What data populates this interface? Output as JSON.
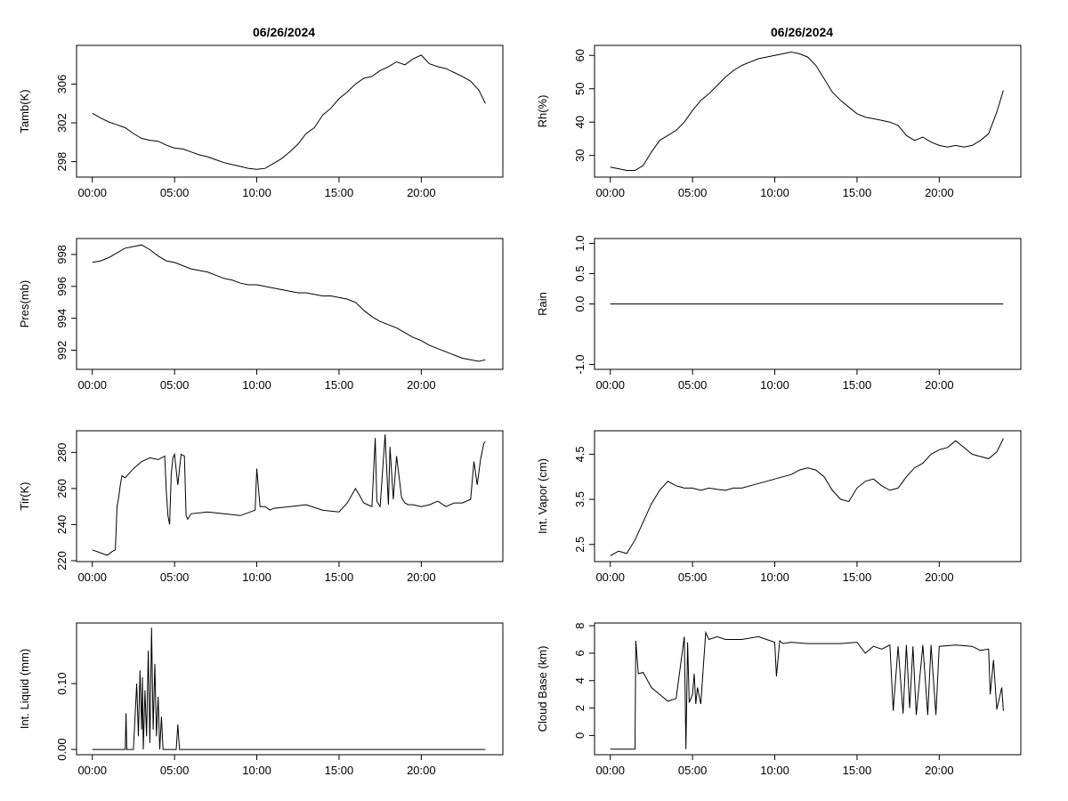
{
  "page": {
    "titles": [
      "06/26/2024",
      "06/26/2024"
    ]
  },
  "chart_data": [
    {
      "id": "tamb",
      "type": "line",
      "ylabel": "Tamb(K)",
      "xticks": [
        "00:00",
        "05:00",
        "10:00",
        "15:00",
        "20:00"
      ],
      "yticks": [
        298,
        302,
        306
      ],
      "ylim": [
        296.4,
        310.0
      ],
      "xlim": [
        -0.96,
        24.96
      ],
      "x": [
        0,
        0.5,
        1,
        1.5,
        2,
        2.5,
        3,
        3.5,
        4,
        4.5,
        5,
        5.5,
        6,
        6.5,
        7,
        7.5,
        8,
        8.5,
        9,
        9.5,
        10,
        10.5,
        11,
        11.5,
        12,
        12.5,
        13,
        13.5,
        14,
        14.5,
        15,
        15.5,
        16,
        16.5,
        17,
        17.5,
        18,
        18.5,
        19,
        19.5,
        20,
        20.5,
        21,
        21.5,
        22,
        22.5,
        23,
        23.5,
        23.9
      ],
      "y": [
        303.0,
        302.5,
        302.1,
        301.8,
        301.5,
        300.9,
        300.4,
        300.2,
        300.1,
        299.7,
        299.4,
        299.3,
        299.0,
        298.7,
        298.5,
        298.2,
        297.9,
        297.7,
        297.5,
        297.3,
        297.2,
        297.3,
        297.8,
        298.3,
        299.0,
        299.8,
        300.9,
        301.5,
        302.8,
        303.5,
        304.5,
        305.2,
        306.0,
        306.6,
        306.8,
        307.4,
        307.8,
        308.3,
        308.0,
        308.6,
        309.0,
        308.1,
        307.8,
        307.6,
        307.2,
        306.8,
        306.3,
        305.4,
        304.0
      ]
    },
    {
      "id": "rh",
      "type": "line",
      "ylabel": "Rh(%)",
      "xticks": [
        "00:00",
        "05:00",
        "10:00",
        "15:00",
        "20:00"
      ],
      "yticks": [
        30,
        40,
        50,
        60
      ],
      "ylim": [
        23.5,
        63.0
      ],
      "xlim": [
        -0.96,
        24.96
      ],
      "x": [
        0,
        0.5,
        1,
        1.5,
        2,
        2.5,
        3,
        3.5,
        4,
        4.5,
        5,
        5.5,
        6,
        6.5,
        7,
        7.5,
        8,
        8.5,
        9,
        9.5,
        10,
        10.5,
        11,
        11.5,
        12,
        12.5,
        13,
        13.5,
        14,
        14.5,
        15,
        15.5,
        16,
        16.5,
        17,
        17.5,
        18,
        18.5,
        19,
        19.5,
        20,
        20.5,
        21,
        21.5,
        22,
        22.5,
        23,
        23.5,
        23.9
      ],
      "y": [
        26.5,
        26.0,
        25.5,
        25.5,
        27.0,
        31.0,
        34.5,
        36.0,
        37.5,
        40.0,
        43.5,
        46.5,
        48.5,
        51.0,
        53.5,
        55.5,
        57.0,
        58.0,
        59.0,
        59.5,
        60.0,
        60.5,
        61.0,
        60.5,
        59.5,
        57.0,
        53.0,
        49.0,
        46.5,
        44.5,
        42.5,
        41.5,
        41.0,
        40.5,
        40.0,
        39.0,
        36.0,
        34.5,
        35.5,
        34.0,
        33.0,
        32.5,
        33.0,
        32.5,
        33.0,
        34.5,
        36.5,
        43.0,
        49.5
      ]
    },
    {
      "id": "pres",
      "type": "line",
      "ylabel": "Pres(mb)",
      "xticks": [
        "00:00",
        "05:00",
        "10:00",
        "15:00",
        "20:00"
      ],
      "yticks": [
        992,
        994,
        996,
        998
      ],
      "ylim": [
        990.8,
        999.0
      ],
      "xlim": [
        -0.96,
        24.96
      ],
      "x": [
        0,
        0.5,
        1,
        1.5,
        2,
        2.5,
        3,
        3.5,
        4,
        4.5,
        5,
        5.5,
        6,
        6.5,
        7,
        7.5,
        8,
        8.5,
        9,
        9.5,
        10,
        10.5,
        11,
        11.5,
        12,
        12.5,
        13,
        13.5,
        14,
        14.5,
        15,
        15.5,
        16,
        16.5,
        17,
        17.5,
        18,
        18.5,
        19,
        19.5,
        20,
        20.5,
        21,
        21.5,
        22,
        22.5,
        23,
        23.5,
        23.9
      ],
      "y": [
        997.5,
        997.6,
        997.8,
        998.1,
        998.4,
        998.5,
        998.6,
        998.3,
        997.9,
        997.6,
        997.5,
        997.3,
        997.1,
        997.0,
        996.9,
        996.7,
        996.5,
        996.4,
        996.2,
        996.1,
        996.1,
        996.0,
        995.9,
        995.8,
        995.7,
        995.6,
        995.6,
        995.5,
        995.4,
        995.4,
        995.3,
        995.2,
        995.0,
        994.5,
        994.1,
        993.8,
        993.6,
        993.4,
        993.1,
        992.8,
        992.6,
        992.3,
        992.1,
        991.9,
        991.7,
        991.5,
        991.4,
        991.3,
        991.4
      ]
    },
    {
      "id": "rain",
      "type": "line",
      "ylabel": "Rain",
      "xticks": [
        "00:00",
        "05:00",
        "10:00",
        "15:00",
        "20:00"
      ],
      "yticks": [
        "-1.0",
        "0.0",
        "0.5",
        "1.0"
      ],
      "ylim": [
        -1.08,
        1.08
      ],
      "xlim": [
        -0.96,
        24.96
      ],
      "x": [
        0,
        23.9
      ],
      "y": [
        0,
        0
      ]
    },
    {
      "id": "tir",
      "type": "line",
      "ylabel": "Tir(K)",
      "xticks": [
        "00:00",
        "05:00",
        "10:00",
        "15:00",
        "20:00"
      ],
      "yticks": [
        220,
        240,
        260,
        280
      ],
      "ylim": [
        219.5,
        292.0
      ],
      "xlim": [
        -0.96,
        24.96
      ],
      "x": [
        0,
        0.6,
        0.9,
        1.2,
        1.4,
        1.5,
        1.6,
        1.7,
        1.8,
        2.0,
        2.5,
        3.0,
        3.5,
        4.0,
        4.4,
        4.5,
        4.6,
        4.7,
        4.8,
        4.9,
        5.0,
        5.2,
        5.4,
        5.6,
        5.7,
        5.8,
        6.0,
        7.0,
        8.0,
        9.0,
        9.9,
        10.0,
        10.2,
        10.5,
        10.8,
        11.0,
        12.0,
        13.0,
        14.0,
        15.0,
        15.5,
        16.0,
        16.2,
        16.5,
        17.0,
        17.2,
        17.3,
        17.5,
        17.8,
        18.0,
        18.1,
        18.3,
        18.5,
        18.8,
        19.0,
        19.2,
        19.5,
        20.0,
        20.5,
        21.0,
        21.5,
        22.0,
        22.5,
        23.0,
        23.2,
        23.4,
        23.6,
        23.8,
        23.9
      ],
      "y": [
        226,
        224,
        223,
        225,
        226,
        250,
        255,
        262,
        267,
        266,
        271,
        275,
        277,
        276,
        278,
        258,
        245,
        240,
        268,
        277,
        279,
        262,
        279,
        278,
        245,
        243,
        246,
        247,
        246,
        245,
        248,
        271,
        250,
        250,
        248,
        249,
        250,
        251,
        248,
        247,
        252,
        260,
        257,
        252,
        250,
        288,
        253,
        250,
        290,
        251,
        283,
        254,
        278,
        255,
        252,
        251,
        251,
        250,
        251,
        253,
        250,
        252,
        252,
        254,
        275,
        262,
        276,
        285,
        286
      ]
    },
    {
      "id": "vapor",
      "type": "line",
      "ylabel": "Int. Vapor (cm)",
      "xticks": [
        "00:00",
        "05:00",
        "10:00",
        "15:00",
        "20:00"
      ],
      "yticks": [
        "2.5",
        "3.5",
        "4.5"
      ],
      "ylim": [
        2.12,
        5.02
      ],
      "xlim": [
        -0.96,
        24.96
      ],
      "x": [
        0,
        0.5,
        1,
        1.5,
        2,
        2.5,
        3,
        3.5,
        4,
        4.5,
        5,
        5.5,
        6,
        6.5,
        7,
        7.5,
        8,
        8.5,
        9,
        9.5,
        10,
        10.5,
        11,
        11.5,
        12,
        12.5,
        13,
        13.5,
        14,
        14.5,
        15,
        15.5,
        16,
        16.5,
        17,
        17.5,
        18,
        18.5,
        19,
        19.5,
        20,
        20.5,
        21,
        21.5,
        22,
        22.5,
        23,
        23.5,
        23.9
      ],
      "y": [
        2.25,
        2.35,
        2.3,
        2.6,
        3.0,
        3.4,
        3.7,
        3.9,
        3.8,
        3.75,
        3.75,
        3.7,
        3.75,
        3.72,
        3.7,
        3.75,
        3.75,
        3.8,
        3.85,
        3.9,
        3.95,
        4.0,
        4.05,
        4.15,
        4.2,
        4.15,
        4.0,
        3.7,
        3.5,
        3.45,
        3.75,
        3.9,
        3.95,
        3.8,
        3.7,
        3.75,
        4.0,
        4.2,
        4.3,
        4.5,
        4.6,
        4.65,
        4.8,
        4.65,
        4.5,
        4.45,
        4.4,
        4.55,
        4.85
      ]
    },
    {
      "id": "liquid",
      "type": "line",
      "ylabel": "Int. Liquid (mm)",
      "xticks": [
        "00:00",
        "05:00",
        "10:00",
        "15:00",
        "20:00"
      ],
      "yticks": [
        "0.00",
        "0.10"
      ],
      "ylim": [
        -0.008,
        0.192
      ],
      "xlim": [
        -0.96,
        24.96
      ],
      "x": [
        0,
        2.0,
        2.05,
        2.1,
        2.5,
        2.7,
        2.8,
        2.9,
        3.0,
        3.05,
        3.1,
        3.2,
        3.3,
        3.4,
        3.5,
        3.6,
        3.7,
        3.8,
        3.9,
        4.0,
        4.1,
        4.2,
        4.3,
        4.4,
        5.1,
        5.2,
        5.3,
        23.9
      ],
      "y": [
        0,
        0,
        0.055,
        0,
        0,
        0.1,
        0.02,
        0.12,
        0.03,
        0.11,
        0,
        0.09,
        0.02,
        0.15,
        0.01,
        0.185,
        0.03,
        0.13,
        0.02,
        0.08,
        0,
        0.05,
        0,
        0,
        0,
        0.038,
        0,
        0
      ]
    },
    {
      "id": "cloud",
      "type": "line",
      "ylabel": "Cloud Base (km)",
      "xticks": [
        "00:00",
        "05:00",
        "10:00",
        "15:00",
        "20:00"
      ],
      "yticks": [
        0,
        2,
        4,
        6,
        8
      ],
      "ylim": [
        -1.4,
        8.2
      ],
      "xlim": [
        -0.96,
        24.96
      ],
      "x": [
        0,
        1.5,
        1.55,
        1.7,
        2.0,
        2.5,
        3.0,
        3.5,
        4.0,
        4.5,
        4.6,
        4.7,
        4.8,
        5.0,
        5.1,
        5.2,
        5.3,
        5.5,
        5.8,
        6.0,
        6.5,
        7.0,
        8.0,
        9.0,
        10.0,
        10.1,
        10.3,
        10.5,
        11.0,
        12.0,
        13.0,
        14.0,
        15.0,
        15.5,
        16.0,
        16.5,
        17.0,
        17.2,
        17.5,
        17.8,
        18.0,
        18.2,
        18.4,
        18.6,
        19.0,
        19.3,
        19.5,
        19.8,
        20.0,
        21.0,
        22.0,
        22.5,
        23.0,
        23.1,
        23.3,
        23.5,
        23.8,
        23.9
      ],
      "y": [
        -1,
        -1,
        6.9,
        4.5,
        4.6,
        3.5,
        3.0,
        2.5,
        2.7,
        7.2,
        -1,
        6.8,
        2.4,
        3.0,
        4.5,
        2.3,
        3.5,
        2.3,
        7.5,
        7.0,
        7.2,
        7.0,
        7.0,
        7.2,
        6.8,
        4.3,
        6.9,
        6.7,
        6.8,
        6.7,
        6.7,
        6.7,
        6.8,
        6.0,
        6.5,
        6.3,
        6.6,
        1.8,
        6.5,
        1.6,
        6.6,
        2.0,
        6.5,
        1.5,
        6.6,
        1.5,
        6.6,
        1.5,
        6.5,
        6.6,
        6.5,
        6.2,
        6.3,
        3.0,
        5.5,
        1.9,
        3.5,
        1.8
      ]
    }
  ]
}
